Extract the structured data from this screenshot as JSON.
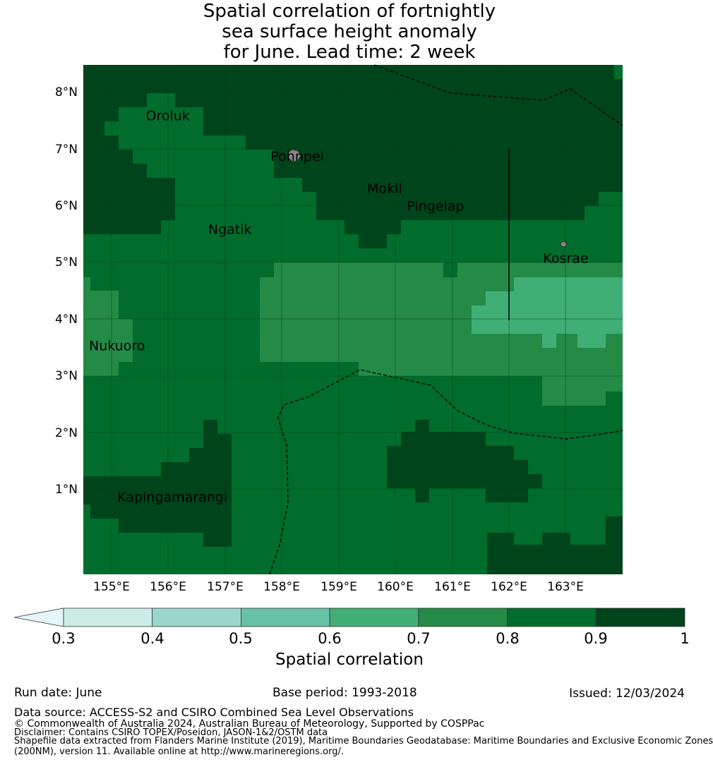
{
  "title_lines": [
    "Spatial correlation of fortnightly",
    "sea surface height anomaly",
    "for June. Lead time: 2 week"
  ],
  "map": {
    "lon_range": [
      154.5,
      164.0
    ],
    "lat_range": [
      -0.25,
      8.5
    ],
    "lat_ticks": [
      "8°N",
      "7°N",
      "6°N",
      "5°N",
      "4°N",
      "3°N",
      "2°N",
      "1°N"
    ],
    "lon_ticks": [
      "155°E",
      "156°E",
      "157°E",
      "158°E",
      "159°E",
      "160°E",
      "161°E",
      "162°E",
      "163°E"
    ],
    "places": [
      {
        "name": "Oroluk",
        "lon": 155.6,
        "lat": 7.55
      },
      {
        "name": "Pohnpei",
        "lon": 157.8,
        "lat": 6.85
      },
      {
        "name": "Mokil",
        "lon": 159.5,
        "lat": 6.3
      },
      {
        "name": "Pingelap",
        "lon": 160.2,
        "lat": 6.0
      },
      {
        "name": "Ngatik",
        "lon": 156.7,
        "lat": 5.6
      },
      {
        "name": "Kosrae",
        "lon": 162.6,
        "lat": 5.1
      },
      {
        "name": "Nukuoro",
        "lon": 154.6,
        "lat": 3.6
      },
      {
        "name": "Kapingamarangi",
        "lon": 155.1,
        "lat": 1.0
      }
    ]
  },
  "colorbar": {
    "colors": [
      "#e5f5f9",
      "#ccece6",
      "#99d8c9",
      "#66c2a4",
      "#41ae76",
      "#238b45",
      "#006d2c",
      "#00441b"
    ],
    "ticks": [
      "0.3",
      "0.4",
      "0.5",
      "0.6",
      "0.7",
      "0.8",
      "0.9",
      "1"
    ],
    "label": "Spatial correlation"
  },
  "footer": {
    "run_date": "Run date: June",
    "base_period": "Base period: 1993-2018",
    "issued": "Issued: 12/03/2024",
    "data_source": "Data source: ACCESS-S2 and CSIRO Combined Sea Level Observations",
    "copyright": "© Commonwealth of Australia 2024, Australian Bureau of Meteorology, Supported by COSPPac",
    "disclaimer": "Disclaimer: Contains CSIRO TOPEX/Poseidon, JASON-1&2/OSTM data",
    "shapefile_1": "Shapefile data extracted from Flanders Marine Institute (2019), Maritime Boundaries Geodatabase: Maritime Boundaries and Exclusive Economic Zones",
    "shapefile_2": "(200NM), version 11. Available online at http://www.marineregions.org/."
  }
}
